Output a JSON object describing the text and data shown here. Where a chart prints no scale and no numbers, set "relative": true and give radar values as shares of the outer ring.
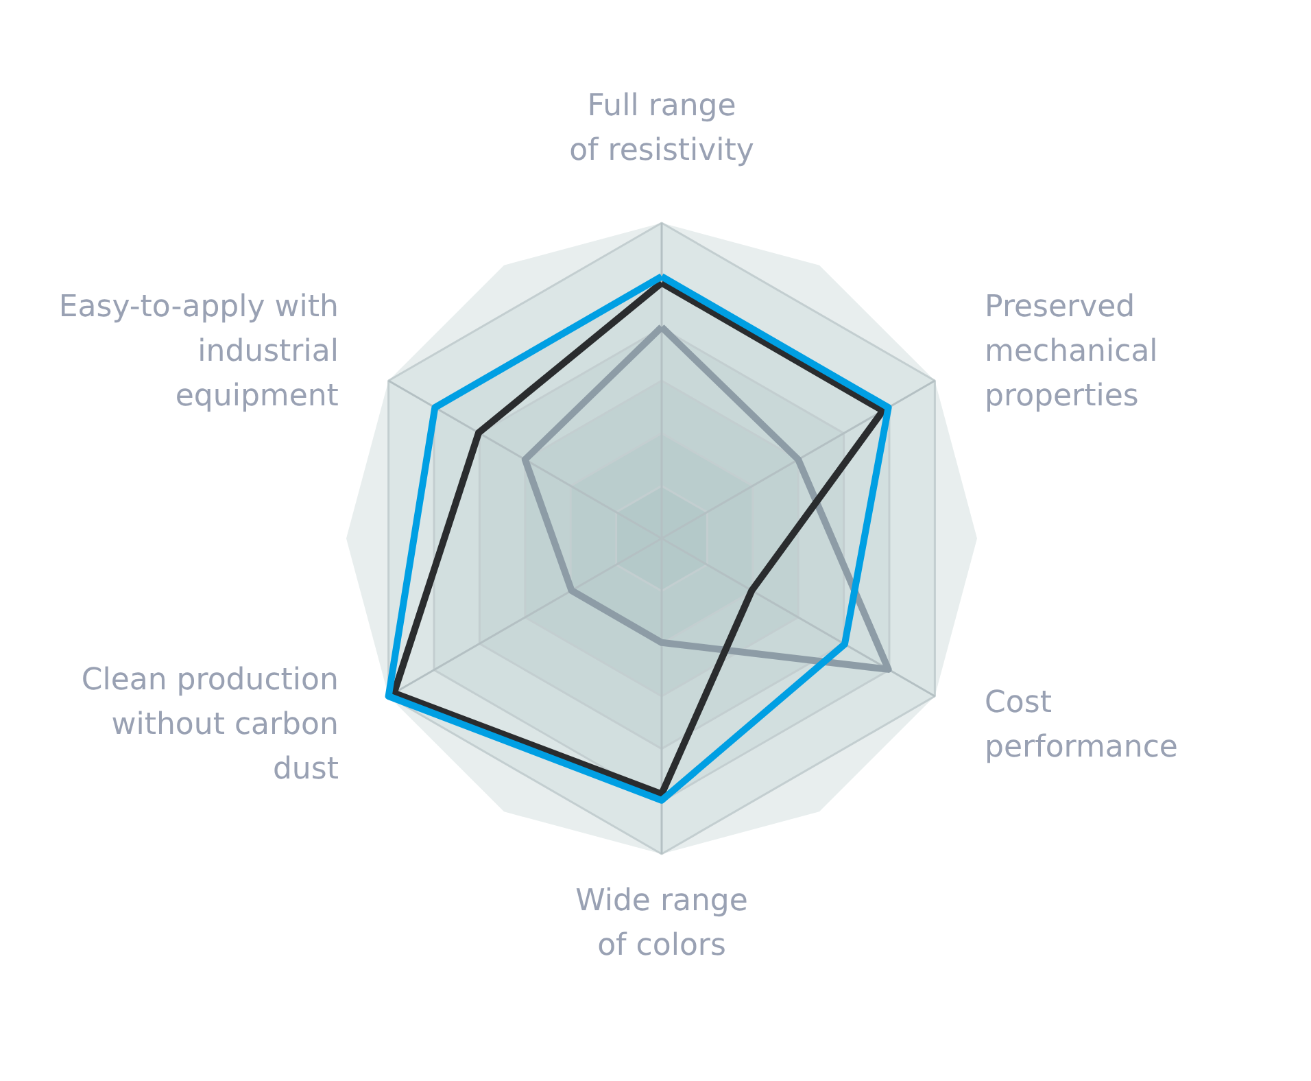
{
  "chart_data": {
    "type": "radar",
    "relative": true,
    "grid": true,
    "categories": [
      "Full range\nof resistivity",
      "Preserved\nmechanical\nproperties",
      "Cost\nperformance",
      "Wide range\nof colors",
      "Clean production\nwithout carbon\ndust",
      "Easy-to-apply with\nindustrial\nequipment"
    ],
    "series": [
      {
        "color": "#8d9ca6",
        "values": [
          0.67,
          0.5,
          0.83,
          0.33,
          0.33,
          0.5
        ]
      },
      {
        "color": "#2a2c2e",
        "values": [
          0.81,
          0.81,
          0.33,
          0.81,
          0.98,
          0.67
        ]
      },
      {
        "color": "#009fe3",
        "values": [
          0.83,
          0.83,
          0.67,
          0.83,
          1,
          0.83
        ]
      }
    ]
  }
}
